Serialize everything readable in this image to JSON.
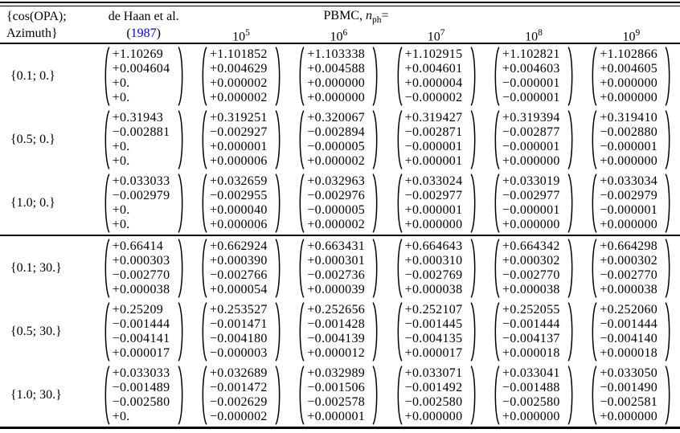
{
  "colors": {
    "citation_blue": "#0000ee"
  },
  "header": {
    "row_label_line1": "{cos(OPA);",
    "row_label_line2": "Azimuth}",
    "dehaan_line1": "de Haan et al.",
    "dehaan_open_paren": "(",
    "dehaan_year": "1987",
    "dehaan_close_paren": ")",
    "pbmc_prefix": "PBMC, ",
    "pbmc_var": "n",
    "pbmc_subscript": "ph",
    "pbmc_suffix": "=",
    "power_base": "10",
    "power_exponents": [
      "5",
      "6",
      "7",
      "8",
      "9"
    ]
  },
  "rows": [
    {
      "label": "{0.1; 0.}",
      "vectors": [
        [
          "+1.10269",
          "+0.004604",
          "+0.",
          "+0."
        ],
        [
          "+1.101852",
          "+0.004629",
          "+0.000002",
          "+0.000002"
        ],
        [
          "+1.103338",
          "+0.004588",
          "+0.000000",
          "+0.000000"
        ],
        [
          "+1.102915",
          "+0.004601",
          "+0.000004",
          "−0.000002"
        ],
        [
          "+1.102821",
          "+0.004603",
          "−0.000001",
          "−0.000001"
        ],
        [
          "+1.102866",
          "+0.004605",
          "+0.000000",
          "+0.000000"
        ]
      ]
    },
    {
      "label": "{0.5; 0.}",
      "vectors": [
        [
          "+0.31943",
          "−0.002881",
          "+0.",
          "+0."
        ],
        [
          "+0.319251",
          "−0.002927",
          "+0.000001",
          "+0.000006"
        ],
        [
          "+0.320067",
          "−0.002894",
          "−0.000005",
          "+0.000002"
        ],
        [
          "+0.319427",
          "−0.002871",
          "−0.000001",
          "+0.000001"
        ],
        [
          "+0.319394",
          "−0.002877",
          "−0.000001",
          "+0.000000"
        ],
        [
          "+0.319410",
          "−0.002880",
          "−0.000001",
          "+0.000000"
        ]
      ]
    },
    {
      "label": "{1.0; 0.}",
      "vectors": [
        [
          "+0.033033",
          "−0.002979",
          "+0.",
          "+0."
        ],
        [
          "+0.032659",
          "−0.002955",
          "+0.000040",
          "+0.000006"
        ],
        [
          "+0.032963",
          "−0.002976",
          "−0.000005",
          "+0.000002"
        ],
        [
          "+0.033024",
          "−0.002977",
          "+0.000001",
          "+0.000000"
        ],
        [
          "+0.033019",
          "−0.002977",
          "−0.000001",
          "+0.000000"
        ],
        [
          "+0.033034",
          "−0.002979",
          "−0.000001",
          "+0.000000"
        ]
      ]
    },
    {
      "label": "{0.1; 30.}",
      "vectors": [
        [
          "+0.66414",
          "+0.000303",
          "−0.002770",
          "+0.000038"
        ],
        [
          "+0.662924",
          "+0.000390",
          "−0.002766",
          "+0.000054"
        ],
        [
          "+0.663431",
          "+0.000301",
          "−0.002736",
          "+0.000039"
        ],
        [
          "+0.664643",
          "+0.000310",
          "−0.002769",
          "+0.000038"
        ],
        [
          "+0.664342",
          "+0.000302",
          "−0.002770",
          "+0.000038"
        ],
        [
          "+0.664298",
          "+0.000302",
          "−0.002770",
          "+0.000038"
        ]
      ]
    },
    {
      "label": "{0.5; 30.}",
      "vectors": [
        [
          "+0.25209",
          "−0.001444",
          "−0.004141",
          "+0.000017"
        ],
        [
          "+0.253527",
          "−0.001471",
          "−0.004180",
          "−0.000003"
        ],
        [
          "+0.252656",
          "−0.001428",
          "−0.004139",
          "+0.000012"
        ],
        [
          "+0.252107",
          "−0.001445",
          "−0.004135",
          "+0.000017"
        ],
        [
          "+0.252055",
          "−0.001444",
          "−0.004137",
          "+0.000018"
        ],
        [
          "+0.252060",
          "−0.001444",
          "−0.004140",
          "+0.000018"
        ]
      ]
    },
    {
      "label": "{1.0; 30.}",
      "vectors": [
        [
          "+0.033033",
          "−0.001489",
          "−0.002580",
          "+0."
        ],
        [
          "+0.032689",
          "−0.001472",
          "−0.002629",
          "−0.000002"
        ],
        [
          "+0.032989",
          "−0.001506",
          "−0.002578",
          "+0.000001"
        ],
        [
          "+0.033071",
          "−0.001492",
          "−0.002580",
          "+0.000000"
        ],
        [
          "+0.033041",
          "−0.001488",
          "−0.002580",
          "+0.000000"
        ],
        [
          "+0.033050",
          "−0.001490",
          "−0.002581",
          "+0.000000"
        ]
      ]
    }
  ]
}
